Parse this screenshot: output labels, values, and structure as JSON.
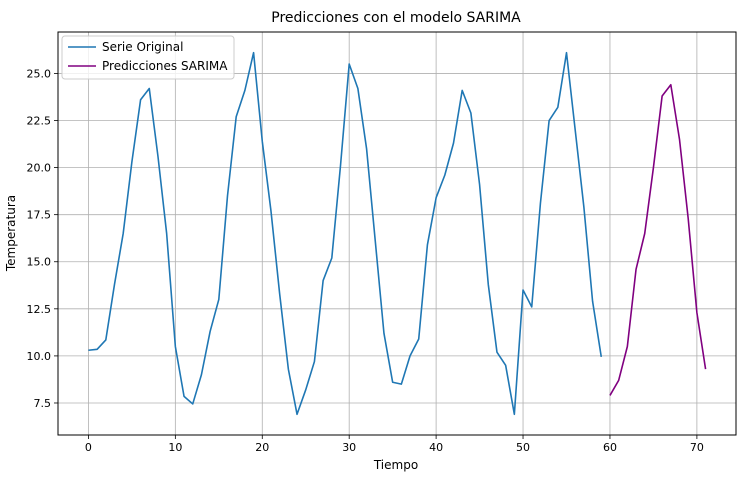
{
  "chart_data": {
    "type": "line",
    "title": "Predicciones con el modelo SARIMA",
    "xlabel": "Tiempo",
    "ylabel": "Temperatura",
    "xlim": [
      -3.5,
      74.5
    ],
    "ylim": [
      5.8,
      27.2
    ],
    "xticks": [
      0,
      10,
      20,
      30,
      40,
      50,
      60,
      70
    ],
    "yticks": [
      7.5,
      10.0,
      12.5,
      15.0,
      17.5,
      20.0,
      22.5,
      25.0
    ],
    "ytick_labels": [
      "7.5",
      "10.0",
      "12.5",
      "15.0",
      "17.5",
      "20.0",
      "22.5",
      "25.0"
    ],
    "grid": true,
    "legend_position": "upper-left",
    "series": [
      {
        "name": "Serie Original",
        "color": "#1f77b4",
        "x": [
          0,
          1,
          2,
          3,
          4,
          5,
          6,
          7,
          8,
          9,
          10,
          11,
          12,
          13,
          14,
          15,
          16,
          17,
          18,
          19,
          20,
          21,
          22,
          23,
          24,
          25,
          26,
          27,
          28,
          29,
          30,
          31,
          32,
          33,
          34,
          35,
          36,
          37,
          38,
          39,
          40,
          41,
          42,
          43,
          44,
          45,
          46,
          47,
          48,
          49,
          50,
          51,
          52,
          53,
          54,
          55,
          56,
          57,
          58,
          59
        ],
        "y": [
          10.3,
          10.35,
          10.85,
          13.8,
          16.5,
          20.3,
          23.6,
          24.2,
          20.6,
          16.5,
          10.5,
          7.85,
          7.45,
          9.0,
          11.3,
          13.0,
          18.5,
          22.7,
          24.1,
          26.1,
          21.4,
          17.7,
          13.3,
          9.3,
          6.9,
          8.2,
          9.7,
          14.0,
          15.2,
          20.1,
          25.5,
          24.2,
          21.0,
          16.1,
          11.2,
          8.6,
          8.5,
          10.0,
          10.9,
          15.9,
          18.4,
          19.6,
          21.3,
          24.1,
          22.9,
          19.1,
          13.8,
          10.2,
          9.5,
          6.9,
          13.5,
          12.6,
          18.1,
          22.5,
          23.2,
          26.1,
          22.0,
          17.9,
          12.9,
          9.95
        ]
      },
      {
        "name": "Predicciones SARIMA",
        "color": "#800080",
        "x": [
          60,
          61,
          62,
          63,
          64,
          65,
          66,
          67,
          68,
          69,
          70,
          71
        ],
        "y": [
          7.9,
          8.7,
          10.5,
          14.6,
          16.5,
          20.0,
          23.8,
          24.4,
          21.5,
          17.3,
          12.3,
          9.3
        ]
      }
    ]
  }
}
